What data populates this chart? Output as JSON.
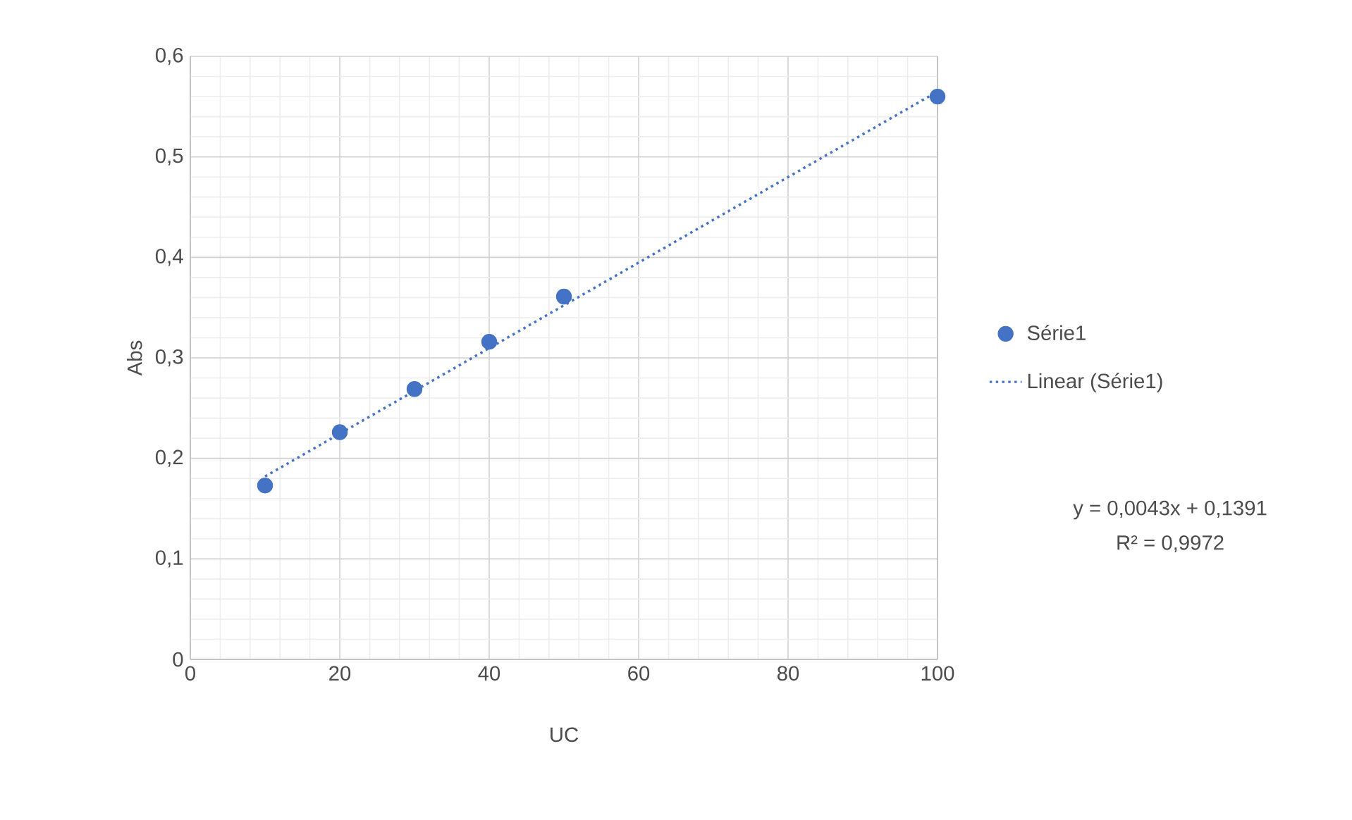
{
  "chart_data": {
    "type": "scatter",
    "xlabel": "UC",
    "ylabel": "Abs",
    "xlim": [
      0,
      100
    ],
    "xticks": [
      0,
      20,
      40,
      60,
      80,
      100
    ],
    "ylim": [
      0,
      0.6
    ],
    "yticks": [
      {
        "value": 0,
        "label": "0"
      },
      {
        "value": 0.1,
        "label": "0,1"
      },
      {
        "value": 0.2,
        "label": "0,2"
      },
      {
        "value": 0.3,
        "label": "0,3"
      },
      {
        "value": 0.4,
        "label": "0,4"
      },
      {
        "value": 0.5,
        "label": "0,5"
      },
      {
        "value": 0.6,
        "label": "0,6"
      }
    ],
    "grid": true,
    "legend": "right",
    "marker": "circle",
    "series": [
      {
        "name": "Série1",
        "color": "#4472c4",
        "x": [
          10,
          20,
          30,
          40,
          50,
          100
        ],
        "values": [
          0.173,
          0.226,
          0.269,
          0.316,
          0.361,
          0.56
        ]
      },
      {
        "name": "Linear (Série1)",
        "type": "line",
        "color": "#4472c4",
        "line_style": "dotted",
        "marker": "none",
        "x": [
          10,
          100
        ],
        "values": [
          0.182,
          0.565
        ]
      }
    ],
    "annotations": [
      "y = 0,0043x + 0,1391",
      "R² = 0,9972"
    ]
  }
}
